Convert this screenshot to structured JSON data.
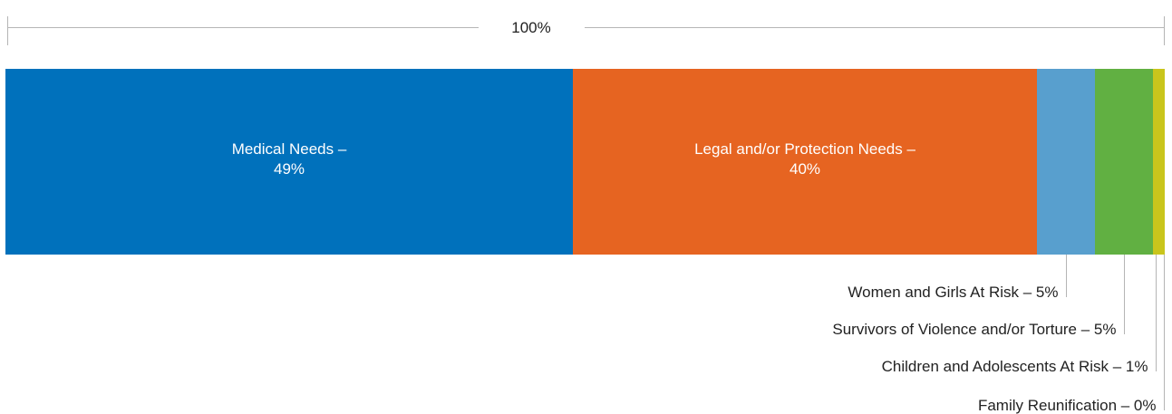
{
  "chart_data": {
    "type": "bar",
    "orientation": "horizontal-stacked-100",
    "total_label": "100%",
    "categories": [
      "Medical Needs",
      "Legal and/or Protection Needs",
      "Women and Girls At Risk",
      "Survivors of Violence and/or Torture",
      "Children and Adolescents At Risk",
      "Family Reunification"
    ],
    "values": [
      49,
      40,
      5,
      5,
      1,
      0
    ],
    "segments": [
      {
        "name": "Medical Needs",
        "label_line1": "Medical Needs –",
        "label_line2": "49%",
        "display": "Medical Needs – 49%",
        "value": 49,
        "color": "#0071bc",
        "label_position": "inside"
      },
      {
        "name": "Legal and/or Protection Needs",
        "label_line1": "Legal and/or Protection Needs –",
        "label_line2": "40%",
        "display": "Legal and/or Protection Needs – 40%",
        "value": 40,
        "color": "#e66421",
        "label_position": "inside"
      },
      {
        "name": "Women and Girls At Risk",
        "display": "Women and Girls At Risk – 5%",
        "value": 5,
        "color": "#589fce",
        "label_position": "callout"
      },
      {
        "name": "Survivors of Violence and/or Torture",
        "display": "Survivors of Violence and/or Torture – 5%",
        "value": 5,
        "color": "#61b042",
        "label_position": "callout"
      },
      {
        "name": "Children and Adolescents At Risk",
        "display": "Children and Adolescents At Risk – 1%",
        "value": 1,
        "color": "#c9c51c",
        "label_position": "callout"
      },
      {
        "name": "Family Reunification",
        "display": "Family Reunification – 0%",
        "value": 0,
        "color": "#c9c51c",
        "label_position": "callout"
      }
    ],
    "title": "",
    "xlabel": "",
    "ylabel": "",
    "grid": false
  }
}
